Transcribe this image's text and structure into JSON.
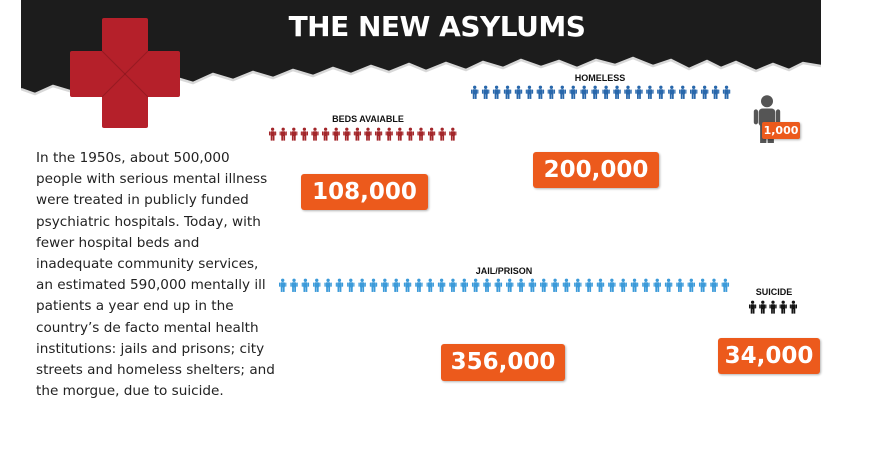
{
  "title": "THE NEW ASYLUMS",
  "intro_text": "In the 1950s, about 500,000 people with serious mental illness were treated in publicly funded psychiatric hospitals. Today, with fewer hospital beds and inadequate community services, an estimated 590,000 mentally ill patients a year end up in the country’s de facto mental health institutions: jails and prisons; city streets and homeless shelters; and the morgue, due to suicide.",
  "legend": {
    "unit_label": "1,000",
    "icon": "person-icon"
  },
  "colors": {
    "banner": "#1c1c1c",
    "cross": "#b5202a",
    "badge": "#ec5a1c",
    "beds": "#a3262a",
    "homeless": "#2867ab",
    "jail": "#3b9ad9",
    "suicide": "#141414",
    "legend_person": "#555555"
  },
  "chart_data": {
    "type": "pictogram",
    "unit": 1000,
    "categories": [
      "BEDS AVAIABLE",
      "HOMELESS",
      "JAIL/PRISON",
      "SUICIDE"
    ],
    "values": [
      108000,
      200000,
      356000,
      34000
    ],
    "value_labels": [
      "108,000",
      "200,000",
      "356,000",
      "34,000"
    ],
    "colors": [
      "#a3262a",
      "#2867ab",
      "#3b9ad9",
      "#141414"
    ]
  }
}
